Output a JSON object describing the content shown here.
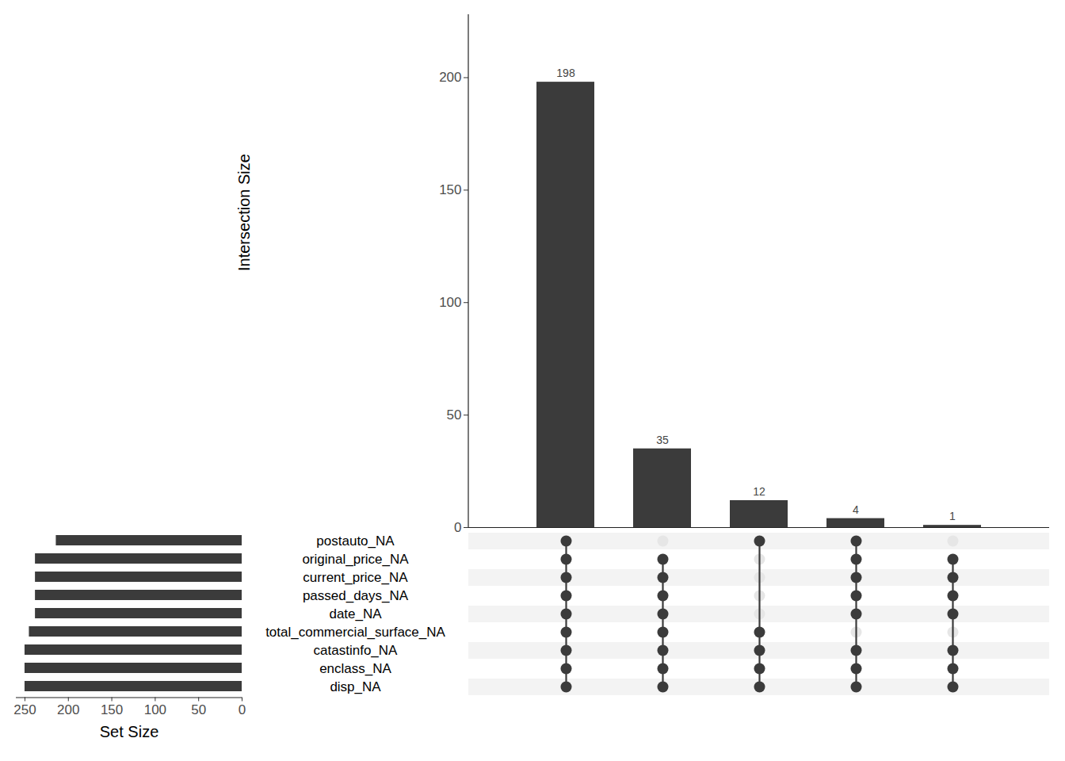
{
  "chart_data": {
    "type": "upset",
    "y_label": "Intersection Size",
    "x_label": "Set Size",
    "color": "#3b3b3b",
    "data_labels": true,
    "sets": [
      "postauto_NA",
      "original_price_NA",
      "current_price_NA",
      "passed_days_NA",
      "date_NA",
      "total_commercial_surface_NA",
      "catastinfo_NA",
      "enclass_NA",
      "disp_NA"
    ],
    "set_sizes": [
      214,
      238,
      238,
      238,
      238,
      245,
      250,
      250,
      250
    ],
    "values": [
      198,
      35,
      12,
      4,
      1
    ],
    "memberships": [
      [
        "postauto_NA",
        "original_price_NA",
        "current_price_NA",
        "passed_days_NA",
        "date_NA",
        "total_commercial_surface_NA",
        "catastinfo_NA",
        "enclass_NA",
        "disp_NA"
      ],
      [
        "original_price_NA",
        "current_price_NA",
        "passed_days_NA",
        "date_NA",
        "total_commercial_surface_NA",
        "catastinfo_NA",
        "enclass_NA",
        "disp_NA"
      ],
      [
        "postauto_NA",
        "total_commercial_surface_NA",
        "catastinfo_NA",
        "enclass_NA",
        "disp_NA"
      ],
      [
        "postauto_NA",
        "original_price_NA",
        "current_price_NA",
        "passed_days_NA",
        "date_NA",
        "catastinfo_NA",
        "enclass_NA",
        "disp_NA"
      ],
      [
        "original_price_NA",
        "current_price_NA",
        "passed_days_NA",
        "date_NA",
        "catastinfo_NA",
        "enclass_NA",
        "disp_NA"
      ]
    ],
    "ylim": [
      0,
      228
    ],
    "yticks": [
      0,
      50,
      100,
      150,
      200
    ],
    "xlim": [
      0,
      260
    ],
    "xticks": [
      0,
      50,
      100,
      150,
      200,
      250
    ]
  }
}
